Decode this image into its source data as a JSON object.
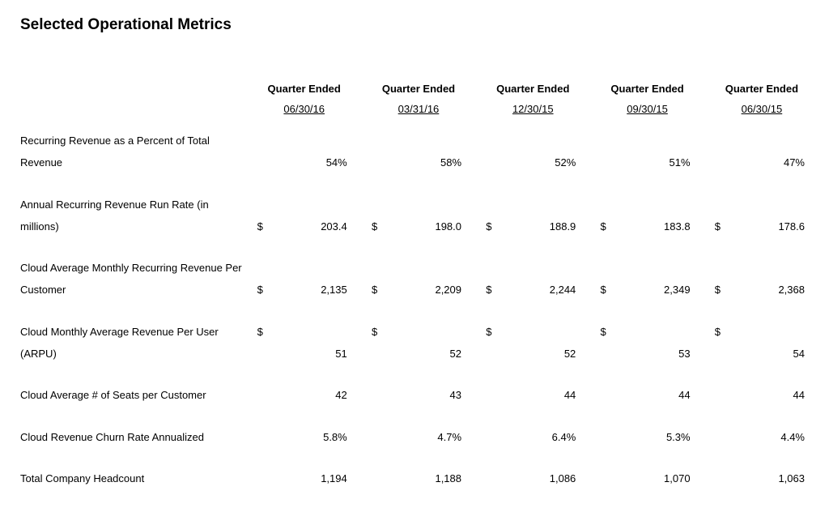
{
  "title": "Selected Operational Metrics",
  "header_label": "Quarter Ended",
  "dates": [
    "06/30/16",
    "03/31/16",
    "12/30/15",
    "09/30/15",
    "06/30/15"
  ],
  "metrics": [
    {
      "label": "Recurring Revenue as a Percent of Total Revenue",
      "currency": "",
      "values": [
        "54%",
        "58%",
        "52%",
        "51%",
        "47%"
      ],
      "cur_on_first_line": false
    },
    {
      "label": "Annual Recurring Revenue Run Rate (in millions)",
      "currency": "$",
      "values": [
        "203.4",
        "198.0",
        "188.9",
        "183.8",
        "178.6"
      ],
      "cur_on_first_line": false
    },
    {
      "label": "Cloud Average Monthly Recurring Revenue Per Customer",
      "currency": "$",
      "values": [
        "2,135",
        "2,209",
        "2,244",
        "2,349",
        "2,368"
      ],
      "cur_on_first_line": false
    },
    {
      "label": "Cloud Monthly Average Revenue Per User (ARPU)",
      "currency": "$",
      "values": [
        "51",
        "52",
        "52",
        "53",
        "54"
      ],
      "cur_on_first_line": true
    },
    {
      "label": "Cloud Average # of Seats per Customer",
      "currency": "",
      "values": [
        "42",
        "43",
        "44",
        "44",
        "44"
      ],
      "cur_on_first_line": false
    },
    {
      "label": "Cloud Revenue Churn Rate Annualized",
      "currency": "",
      "values": [
        "5.8%",
        "4.7%",
        "6.4%",
        "5.3%",
        "4.4%"
      ],
      "cur_on_first_line": false
    },
    {
      "label": "Total Company Headcount",
      "currency": "",
      "values": [
        "1,194",
        "1,188",
        "1,086",
        "1,070",
        "1,063"
      ],
      "cur_on_first_line": false
    }
  ],
  "colors": {
    "text": "#000000",
    "background": "#ffffff"
  }
}
